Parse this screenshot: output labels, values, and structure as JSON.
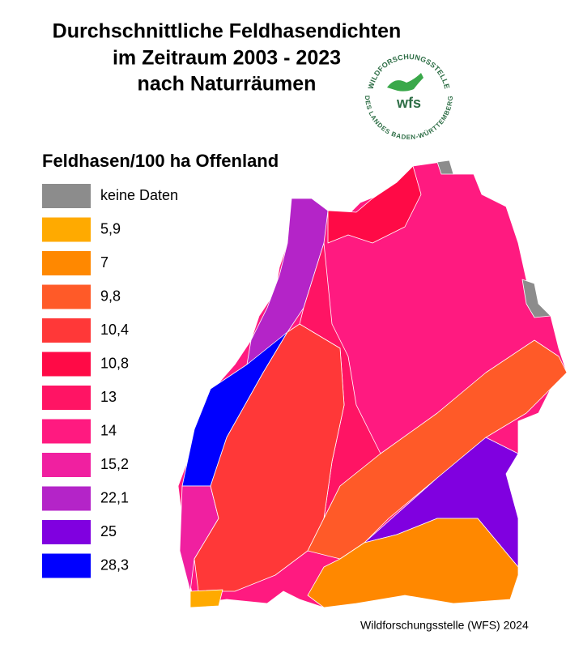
{
  "header": {
    "title_lines": [
      "Durchschnittliche Feldhasendichten",
      "im Zeitraum 2003 - 2023",
      "nach Naturräumen"
    ]
  },
  "logo": {
    "top_text": "WILDFORSCHUNGSSTELLE",
    "bottom_text": "DES LANDES BADEN-WÜRTTEMBERG",
    "center_text": "wfs"
  },
  "legend": {
    "title": "Feldhasen/100 ha Offenland",
    "items": [
      {
        "label": "keine Daten",
        "color": "#8c8c8c"
      },
      {
        "label": "5,9",
        "color": "#ffaa00"
      },
      {
        "label": "7",
        "color": "#ff8800"
      },
      {
        "label": "9,8",
        "color": "#ff5a28"
      },
      {
        "label": "10,4",
        "color": "#ff3838"
      },
      {
        "label": "10,8",
        "color": "#ff0a46"
      },
      {
        "label": "13",
        "color": "#ff1464"
      },
      {
        "label": "14",
        "color": "#ff1a80"
      },
      {
        "label": "15,2",
        "color": "#f020a0"
      },
      {
        "label": "22,1",
        "color": "#b424c8"
      },
      {
        "label": "25",
        "color": "#8000e0"
      },
      {
        "label": "28,3",
        "color": "#0000ff"
      }
    ]
  },
  "footer": {
    "source": "Wildforschungsstelle (WFS) 2024"
  }
}
